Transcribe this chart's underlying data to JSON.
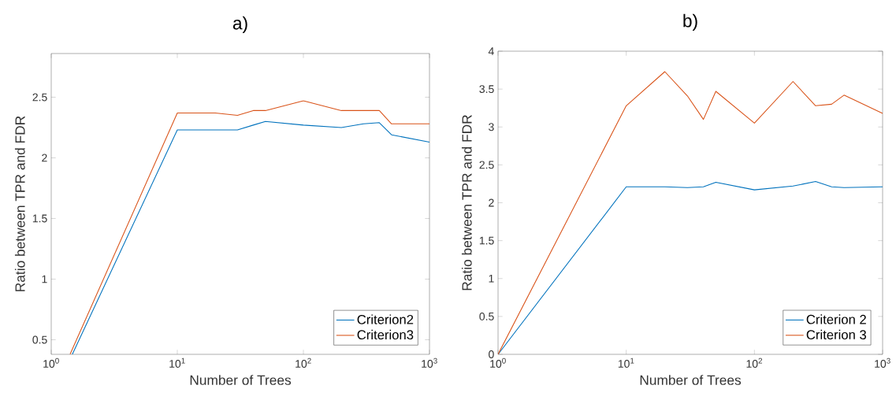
{
  "chart_data": [
    {
      "type": "line",
      "title": "a)",
      "xlabel": "Number of Trees",
      "ylabel": "Ratio between TPR and FDR",
      "log": "x",
      "grid": false,
      "legend": "bottom right",
      "marker": "none",
      "line_style": "solid",
      "xlim": [
        1,
        1000
      ],
      "xticks": [
        {
          "value": 1,
          "label": "10$^{0}$"
        },
        {
          "value": 10,
          "label": "10$^{1}$"
        },
        {
          "value": 100,
          "label": "10$^{2}$"
        },
        {
          "value": 1000,
          "label": "10$^{3}$"
        }
      ],
      "ylim": [
        0.38,
        2.86
      ],
      "yticks": [
        0.5,
        1,
        1.5,
        2,
        2.5
      ],
      "series": [
        {
          "name": "Criterion2",
          "color": "#0072bd",
          "x": [
            1.47,
            10,
            20,
            30,
            40,
            50,
            100,
            200,
            300,
            400,
            500,
            1000
          ],
          "values": [
            0.38,
            2.23,
            2.23,
            2.23,
            2.27,
            2.3,
            2.27,
            2.25,
            2.28,
            2.29,
            2.19,
            2.13
          ]
        },
        {
          "name": "Criterion3",
          "color": "#d95319",
          "x": [
            1.41,
            10,
            20,
            30,
            40,
            50,
            100,
            200,
            300,
            400,
            500,
            1000
          ],
          "values": [
            0.38,
            2.37,
            2.37,
            2.35,
            2.39,
            2.39,
            2.47,
            2.39,
            2.39,
            2.39,
            2.28,
            2.28
          ]
        }
      ]
    },
    {
      "type": "line",
      "title": "b)",
      "xlabel": "Number of Trees",
      "ylabel": "Ratio between TPR and FDR",
      "log": "x",
      "grid": false,
      "legend": "bottom right",
      "marker": "none",
      "line_style": "solid",
      "x": [
        1,
        10,
        20,
        30,
        40,
        50,
        100,
        200,
        300,
        400,
        500,
        1000
      ],
      "xlim": [
        1,
        1000
      ],
      "xticks": [
        {
          "value": 1,
          "label": "10$^{0}$"
        },
        {
          "value": 10,
          "label": "10$^{1}$"
        },
        {
          "value": 100,
          "label": "10$^{2}$"
        },
        {
          "value": 1000,
          "label": "10$^{3}$"
        }
      ],
      "ylim": [
        0,
        4
      ],
      "yticks": [
        0,
        0.5,
        1,
        1.5,
        2,
        2.5,
        3,
        3.5,
        4
      ],
      "series": [
        {
          "name": "Criterion 2",
          "color": "#0072bd",
          "values": [
            0,
            2.21,
            2.21,
            2.2,
            2.21,
            2.27,
            2.17,
            2.22,
            2.28,
            2.21,
            2.2,
            2.21
          ]
        },
        {
          "name": "Criterion 3",
          "color": "#d95319",
          "values": [
            0,
            3.28,
            3.73,
            3.41,
            3.1,
            3.47,
            3.05,
            3.6,
            3.28,
            3.3,
            3.42,
            3.18
          ]
        }
      ]
    }
  ]
}
